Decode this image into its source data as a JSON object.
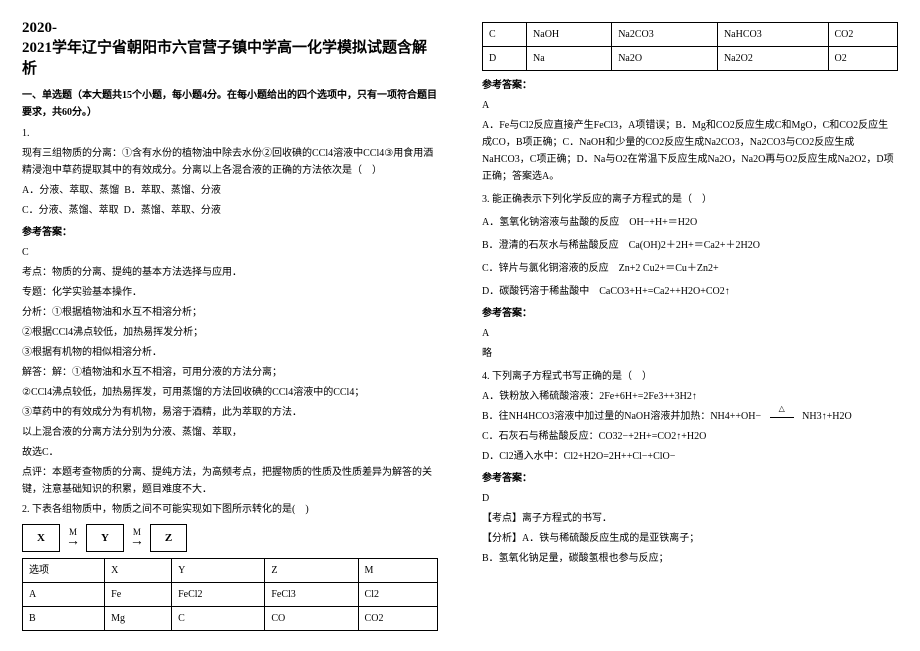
{
  "title": "2020-\n2021学年辽宁省朝阳市六官营子镇中学高一化学模拟试题含解析",
  "section1": "一、单选题（本大题共15个小题，每小题4分。在每小题给出的四个选项中，只有一项符合题目要求，共60分。）",
  "q1": {
    "num": "1.",
    "stem": "现有三组物质的分离：①含有水份的植物油中除去水份②回收碘的CCl4溶液中CCl4③用食用酒精浸泡中草药提取其中的有效成分。分离以上各混合液的正确的方法依次是（　）",
    "a": "A．分液、萃取、蒸馏",
    "b": "B．萃取、蒸馏、分液",
    "c": "C．分液、蒸馏、萃取",
    "d": "D．蒸馏、萃取、分液",
    "ref": "参考答案：",
    "ans": "C",
    "a1": "考点：物质的分离、提纯的基本方法选择与应用．",
    "a2": "专题：化学实验基本操作．",
    "a3": "分析：①根据植物油和水互不相溶分析；",
    "a4": "②根据CCl4沸点较低，加热易挥发分析；",
    "a5": "③根据有机物的相似相溶分析．",
    "a6": "解答：解：①植物油和水互不相溶，可用分液的方法分离；",
    "a7": "②CCl4沸点较低，加热易挥发，可用蒸馏的方法回收碘的CCl4溶液中的CCl4；",
    "a8": "③草药中的有效成分为有机物，易溶于酒精，此为萃取的方法．",
    "a9": "以上混合液的分离方法分别为分液、蒸馏、萃取，",
    "a10": "故选C．",
    "a11": "点评：本题考查物质的分离、提纯方法，为高频考点，把握物质的性质及性质差异为解答的关键，注意基础知识的积累，题目难度不大．"
  },
  "q2": {
    "stem": "2. 下表各组物质中，物质之间不可能实现如下图所示转化的是(　)",
    "dX": "X",
    "dY": "Y",
    "dZ": "Z",
    "dM": "M",
    "th_sel": "选项",
    "th_x": "X",
    "th_y": "Y",
    "th_z": "Z",
    "th_m": "M",
    "rA": {
      "s": "A",
      "x": "Fe",
      "y": "FeCl2",
      "z": "FeCl3",
      "m": "Cl2"
    },
    "rB": {
      "s": "B",
      "x": "Mg",
      "y": "C",
      "z": "CO",
      "m": "CO2"
    },
    "rC": {
      "s": "C",
      "x": "NaOH",
      "y": "Na2CO3",
      "z": "NaHCO3",
      "m": "CO2"
    },
    "rD": {
      "s": "D",
      "x": "Na",
      "y": "Na2O",
      "z": "Na2O2",
      "m": "O2"
    },
    "ref": "参考答案：",
    "ans": "A",
    "exp1": "A．Fe与Cl2反应直接产生FeCl3，A项错误；B．Mg和CO2反应生成C和MgO，C和CO2反应生成CO，B项正确；C．NaOH和少量的CO2反应生成Na2CO3，Na2CO3与CO2反应生成NaHCO3，C项正确；D．Na与O2在常温下反应生成Na2O，Na2O再与O2反应生成Na2O2，D项正确；答案选A。"
  },
  "q3": {
    "stem": "3. 能正确表示下列化学反应的离子方程式的是（　）",
    "a": "A．氢氧化钠溶液与盐酸的反应　OH−+H+＝H2O",
    "b": "B．澄清的石灰水与稀盐酸反应　Ca(OH)2＋2H+＝Ca2+＋2H2O",
    "c": "C．锌片与氯化铜溶液的反应　Zn+2 Cu2+＝Cu＋Zn2+",
    "d": "D．碳酸钙溶于稀盐酸中　CaCO3+H+=Ca2++H2O+CO2↑",
    "ref": "参考答案：",
    "ans": "A",
    "note": "略"
  },
  "q4": {
    "stem": "4. 下列离子方程式书写正确的是（　）",
    "a": "A．铁粉放入稀硫酸溶液：2Fe+6H+=2Fe3++3H2↑",
    "b_pre": "B．往NH4HCO3溶液中加过量的NaOH溶液并加热：NH4++OH−",
    "b_post": "NH3↑+H2O",
    "c": "C．石灰石与稀盐酸反应：CO32−+2H+=CO2↑+H2O",
    "d": "D．Cl2通入水中：Cl2+H2O=2H++Cl−+ClO−",
    "ref": "参考答案：",
    "ans": "D",
    "k": "【考点】离子方程式的书写．",
    "f1": "【分析】A．铁与稀硫酸反应生成的是亚铁离子；",
    "f2": "B．氢氧化钠足量，碳酸氢根也参与反应；"
  }
}
